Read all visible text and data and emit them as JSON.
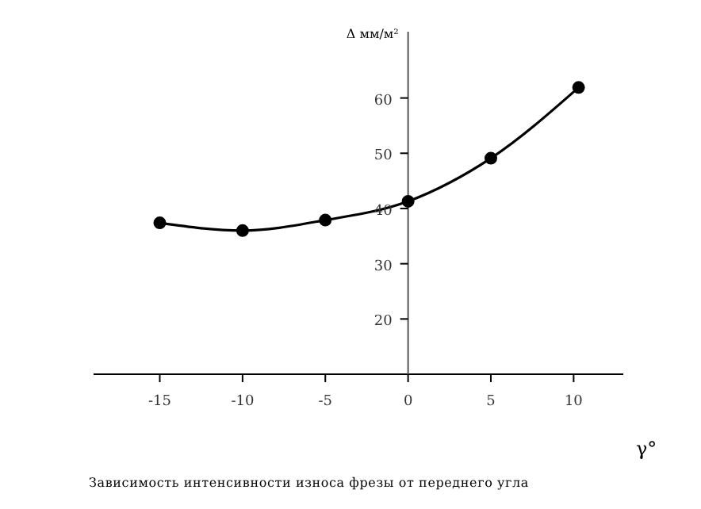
{
  "chart_data": {
    "type": "line",
    "xlabel": "γ°",
    "ylabel": "Δ мм/м²",
    "annotations": [
      "Зависимость интенсивности износа фрезы от переднего угла"
    ],
    "x": [
      -15,
      -10,
      -5,
      0,
      5,
      10.3
    ],
    "series": [
      {
        "color": "#000000",
        "values": [
          37.4,
          36.0,
          37.9,
          41.3,
          49.1,
          61.9
        ]
      }
    ],
    "xlim": [
      -19,
      13
    ],
    "ylim": [
      10,
      72
    ],
    "xticks": [
      -15,
      -10,
      -5,
      0,
      5,
      10
    ],
    "yticks": [
      20,
      30,
      40,
      50,
      60
    ],
    "grid": false,
    "legend": false,
    "marker": "circle",
    "line_style": "solid"
  }
}
